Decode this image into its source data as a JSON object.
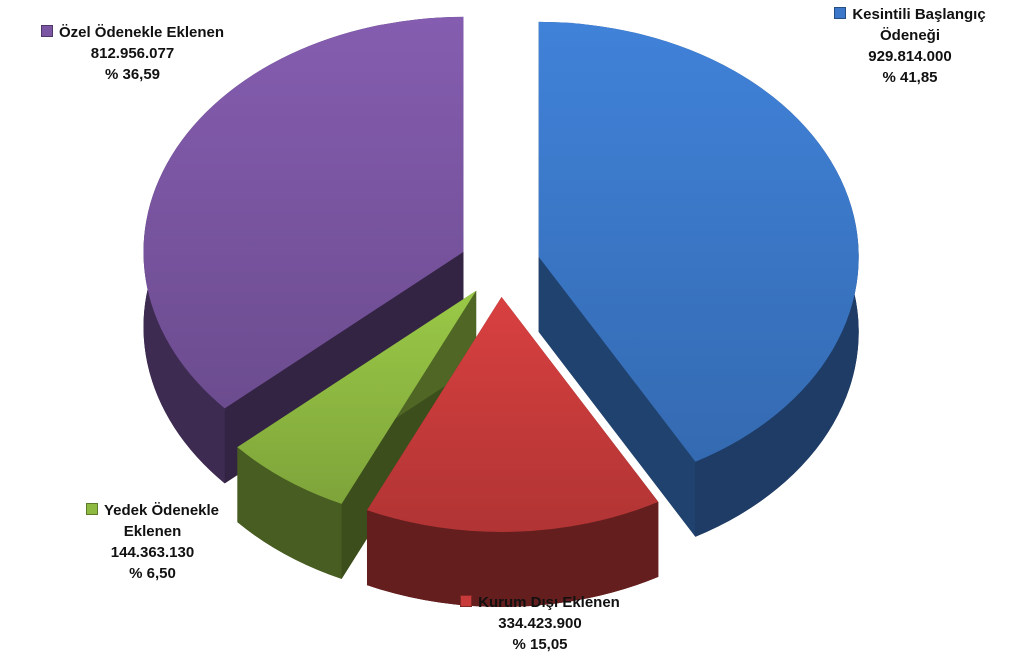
{
  "chart_data": {
    "type": "pie",
    "categories": [
      "Kesintili Başlangıç Ödeneği",
      "Kurum Dışı Eklenen",
      "Yedek Ödenekle Eklenen",
      "Özel Ödenekle Eklenen"
    ],
    "values": [
      929814000,
      334423900,
      144363130,
      812956077
    ],
    "value_labels": [
      "929.814.000",
      "334.423.900",
      "144.363.130",
      "812.956.077"
    ],
    "percentages": [
      41.85,
      15.05,
      6.5,
      36.59
    ],
    "percentage_labels": [
      "% 41,85",
      "% 15,05",
      "% 6,50",
      "% 36,59"
    ],
    "colors": [
      "#3b78c9",
      "#c93b3b",
      "#8fba42",
      "#7b56a3"
    ]
  }
}
